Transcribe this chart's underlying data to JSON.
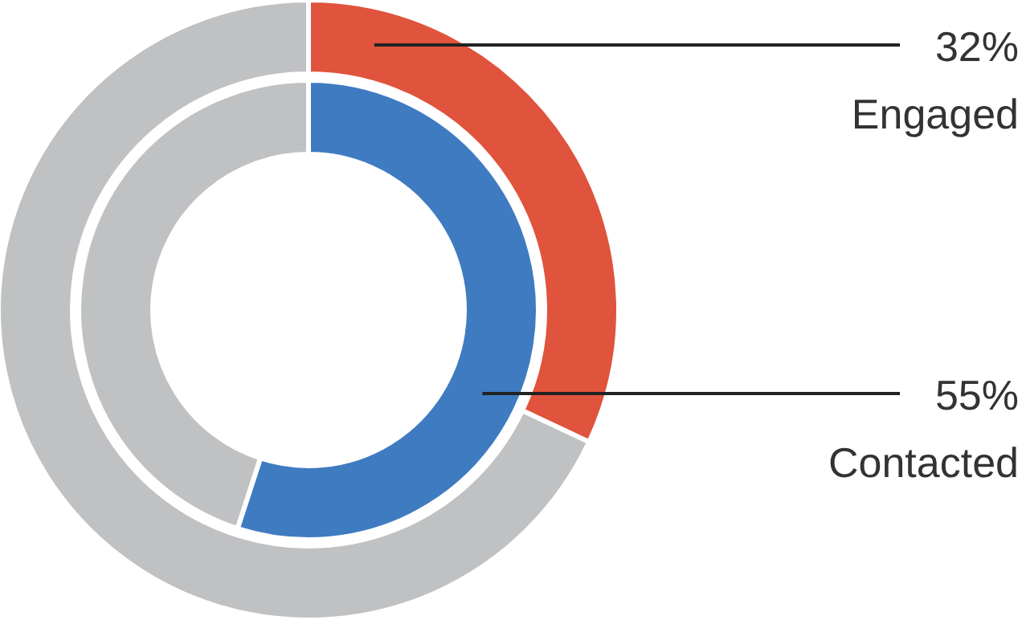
{
  "chart_data": {
    "type": "donut",
    "series": [
      {
        "name": "Engaged",
        "values": [
          32,
          68
        ],
        "colors": [
          "#e0533c",
          "#c0c1c3"
        ],
        "value_labels": [
          "32%",
          null
        ]
      },
      {
        "name": "Contacted",
        "values": [
          55,
          45
        ],
        "colors": [
          "#3f7bc1",
          "#c0c1c3"
        ],
        "value_labels": [
          "55%",
          null
        ]
      }
    ],
    "legend": false
  }
}
